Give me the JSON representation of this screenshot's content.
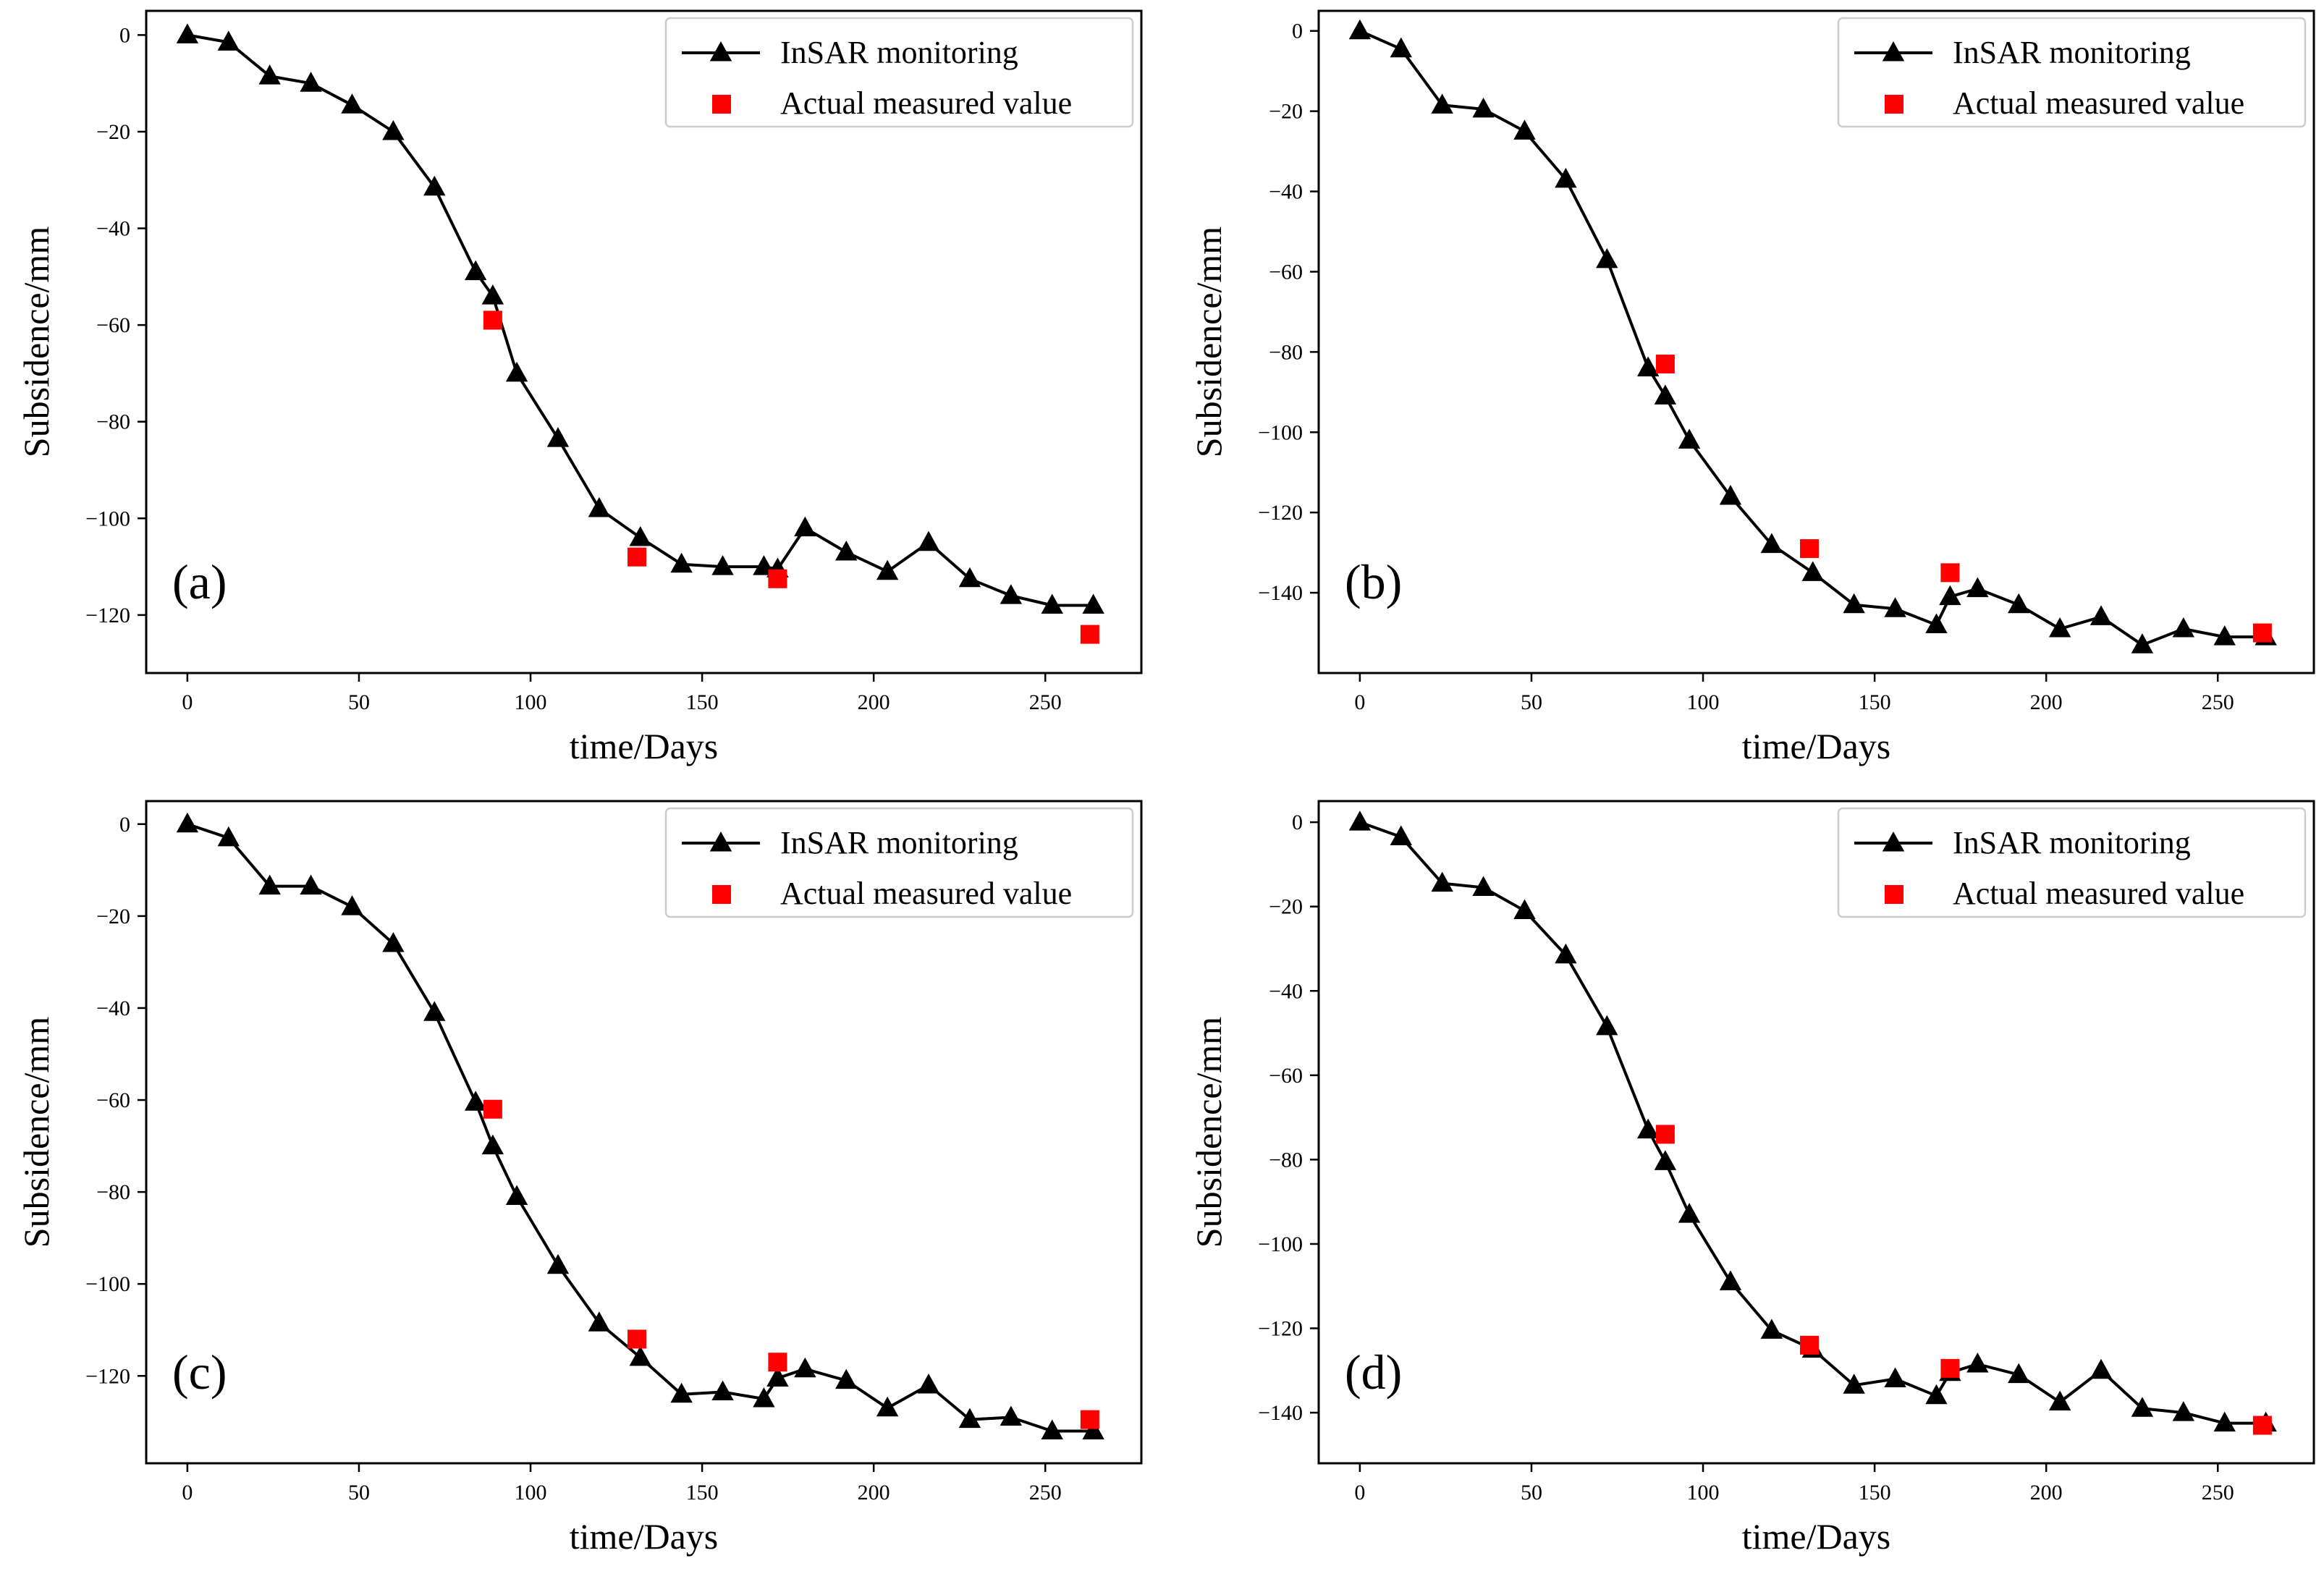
{
  "chart_data": [
    {
      "type": "line",
      "panel_label": "(a)",
      "xlabel": "time/Days",
      "ylabel": "Subsidence/mm",
      "xlim": [
        -12,
        278
      ],
      "ylim": [
        -132,
        5
      ],
      "xticks": [
        0,
        50,
        100,
        150,
        200,
        250
      ],
      "xtick_labels": [
        "0",
        "50",
        "100",
        "150",
        "200",
        "250"
      ],
      "yticks": [
        0,
        -20,
        -40,
        -60,
        -80,
        -100,
        -120
      ],
      "ytick_labels": [
        "0",
        "−20",
        "−40",
        "−60",
        "−80",
        "−100",
        "−120"
      ],
      "legend_position": "top-right",
      "series": [
        {
          "name": "InSAR monitoring",
          "style": "line-triangle",
          "color": "#000000",
          "x": [
            0,
            12,
            24,
            36,
            48,
            60,
            72,
            84,
            89,
            96,
            108,
            120,
            132,
            144,
            156,
            168,
            172,
            180,
            192,
            204,
            216,
            228,
            240,
            252,
            264
          ],
          "y": [
            0,
            -1.5,
            -8.5,
            -10,
            -14.5,
            -20,
            -31.5,
            -49,
            -54,
            -70,
            -83.5,
            -98,
            -104,
            -109.5,
            -110,
            -110,
            -110.5,
            -102,
            -107,
            -111,
            -105,
            -112.5,
            -116,
            -118,
            -118
          ]
        },
        {
          "name": "Actual measured value",
          "style": "square",
          "color": "#ff0000",
          "x": [
            89,
            131,
            172,
            263
          ],
          "y": [
            -59,
            -108,
            -112.5,
            -124
          ]
        }
      ]
    },
    {
      "type": "line",
      "panel_label": "(b)",
      "xlabel": "time/Days",
      "ylabel": "Subsidence/mm",
      "xlim": [
        -12,
        278
      ],
      "ylim": [
        -160,
        5
      ],
      "xticks": [
        0,
        50,
        100,
        150,
        200,
        250
      ],
      "xtick_labels": [
        "0",
        "50",
        "100",
        "150",
        "200",
        "250"
      ],
      "yticks": [
        0,
        -20,
        -40,
        -60,
        -80,
        -100,
        -120,
        -140
      ],
      "ytick_labels": [
        "0",
        "−20",
        "−40",
        "−60",
        "−80",
        "−100",
        "−120",
        "−140"
      ],
      "legend_position": "top-right",
      "series": [
        {
          "name": "InSAR monitoring",
          "style": "line-triangle",
          "color": "#000000",
          "x": [
            0,
            12,
            24,
            36,
            48,
            60,
            72,
            84,
            89,
            96,
            108,
            120,
            132,
            144,
            156,
            168,
            172,
            180,
            192,
            204,
            216,
            228,
            240,
            252,
            264
          ],
          "y": [
            0,
            -4.5,
            -18.5,
            -19.5,
            -25,
            -37,
            -57,
            -84,
            -91,
            -102,
            -116,
            -128,
            -135,
            -143,
            -144,
            -148,
            -141,
            -139,
            -143,
            -149,
            -146,
            -153,
            -149,
            -151,
            -151
          ]
        },
        {
          "name": "Actual measured value",
          "style": "square",
          "color": "#ff0000",
          "x": [
            89,
            131,
            172,
            263
          ],
          "y": [
            -83,
            -129,
            -135,
            -150
          ]
        }
      ]
    },
    {
      "type": "line",
      "panel_label": "(c)",
      "xlabel": "time/Days",
      "ylabel": "Subsidence/mm",
      "xlim": [
        -12,
        278
      ],
      "ylim": [
        -139,
        5
      ],
      "xticks": [
        0,
        50,
        100,
        150,
        200,
        250
      ],
      "xtick_labels": [
        "0",
        "50",
        "100",
        "150",
        "200",
        "250"
      ],
      "yticks": [
        0,
        -20,
        -40,
        -60,
        -80,
        -100,
        -120
      ],
      "ytick_labels": [
        "0",
        "−20",
        "−40",
        "−60",
        "−80",
        "−100",
        "−120"
      ],
      "legend_position": "top-right",
      "series": [
        {
          "name": "InSAR monitoring",
          "style": "line-triangle",
          "color": "#000000",
          "x": [
            0,
            12,
            24,
            36,
            48,
            60,
            72,
            84,
            89,
            96,
            108,
            120,
            132,
            144,
            156,
            168,
            172,
            180,
            192,
            204,
            216,
            228,
            240,
            252,
            264
          ],
          "y": [
            0,
            -3,
            -13.5,
            -13.5,
            -18,
            -26,
            -41,
            -60.5,
            -70,
            -81,
            -96,
            -108.5,
            -116,
            -124,
            -123.5,
            -125,
            -120.5,
            -118.5,
            -121,
            -127,
            -122,
            -129.5,
            -129,
            -132,
            -132
          ]
        },
        {
          "name": "Actual measured value",
          "style": "square",
          "color": "#ff0000",
          "x": [
            89,
            131,
            172,
            263
          ],
          "y": [
            -62,
            -112,
            -117,
            -129.5
          ]
        }
      ]
    },
    {
      "type": "line",
      "panel_label": "(d)",
      "xlabel": "time/Days",
      "ylabel": "Subsidence/mm",
      "xlim": [
        -12,
        278
      ],
      "ylim": [
        -152,
        5
      ],
      "xticks": [
        0,
        50,
        100,
        150,
        200,
        250
      ],
      "xtick_labels": [
        "0",
        "50",
        "100",
        "150",
        "200",
        "250"
      ],
      "yticks": [
        0,
        -20,
        -40,
        -60,
        -80,
        -100,
        -120,
        -140
      ],
      "ytick_labels": [
        "0",
        "−20",
        "−40",
        "−60",
        "−80",
        "−100",
        "−120",
        "−140"
      ],
      "legend_position": "top-right",
      "series": [
        {
          "name": "InSAR monitoring",
          "style": "line-triangle",
          "color": "#000000",
          "x": [
            0,
            12,
            24,
            36,
            48,
            60,
            72,
            84,
            89,
            96,
            108,
            120,
            132,
            144,
            156,
            168,
            172,
            180,
            192,
            204,
            216,
            228,
            240,
            252,
            264
          ],
          "y": [
            0,
            -3.5,
            -14.5,
            -15.5,
            -21,
            -31.5,
            -48.5,
            -73,
            -80.5,
            -93,
            -109,
            -120.5,
            -125,
            -133.5,
            -132,
            -136,
            -130.5,
            -128.5,
            -131,
            -137.5,
            -130,
            -139,
            -140,
            -142.5,
            -142.5
          ]
        },
        {
          "name": "Actual measured value",
          "style": "square",
          "color": "#ff0000",
          "x": [
            89,
            131,
            172,
            263
          ],
          "y": [
            -74,
            -124,
            -129.5,
            -143
          ]
        }
      ]
    }
  ]
}
